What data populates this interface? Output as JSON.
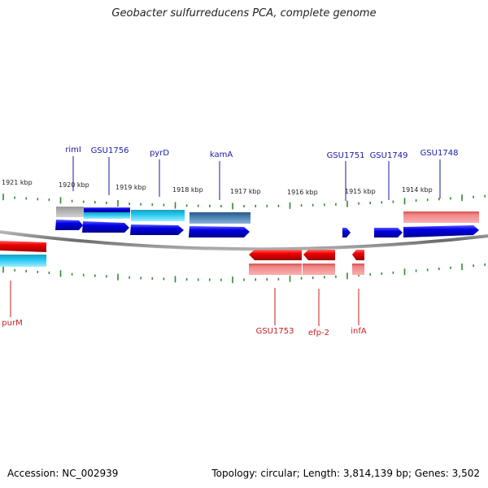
{
  "title": "Geobacter sulfurreducens PCA, complete genome",
  "footer": {
    "accession": "Accession: NC_002939",
    "summary": "Topology: circular; Length: 3,814,139 bp; Genes: 3,502"
  },
  "scale_labels": [
    "1921 kbp",
    "1920 kbp",
    "1919 kbp",
    "1918 kbp",
    "1917 kbp",
    "1916 kbp",
    "1915 kbp",
    "1914 kbp"
  ],
  "upper_gene_labels": [
    "rimI",
    "GSU1756",
    "pyrD",
    "kamA",
    "GSU1751",
    "GSU1749",
    "GSU1748"
  ],
  "lower_gene_labels": [
    "purM",
    "GSU1753",
    "efp-2",
    "infA"
  ],
  "colors": {
    "forward_label": "#1a1aa8",
    "reverse_label": "#c81e1e",
    "forward_gene": "#0a0ae0",
    "reverse_gene": "#e81010",
    "tick": "#2e8b2e",
    "backbone": "#808080"
  }
}
